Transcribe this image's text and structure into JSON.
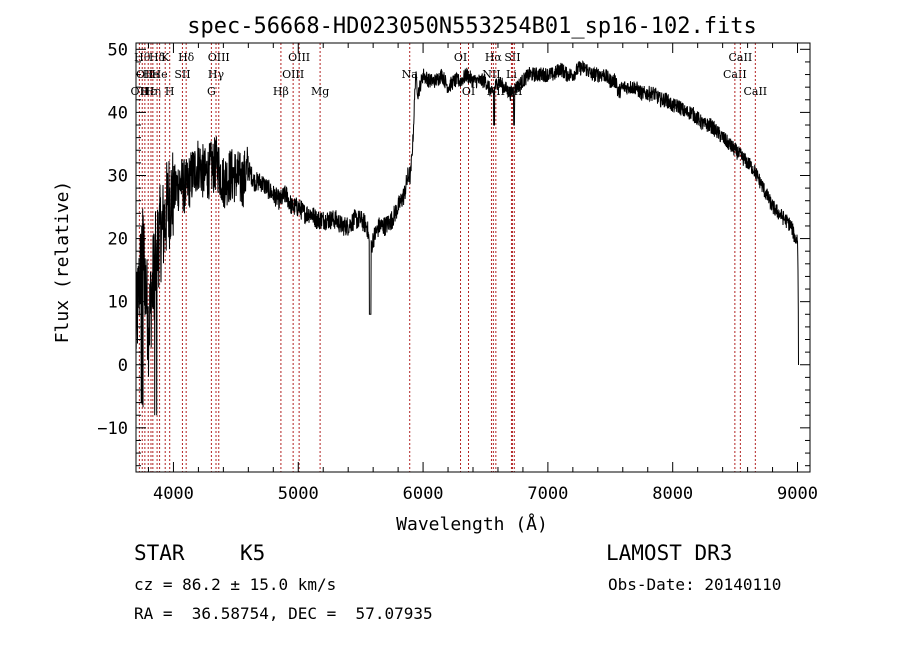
{
  "chart_data": {
    "type": "line",
    "title": "spec-56668-HD023050N553254B01_sp16-102.fits",
    "xlabel": "Wavelength (Å)",
    "ylabel": "Flux (relative)",
    "xlim": [
      3700,
      9100
    ],
    "ylim": [
      -17,
      51
    ],
    "xticks": [
      4000,
      5000,
      6000,
      7000,
      8000,
      9000
    ],
    "yticks": [
      -10,
      0,
      10,
      20,
      30,
      40,
      50
    ],
    "ytick_labels": [
      "−10",
      "0",
      "10",
      "20",
      "30",
      "40",
      "50"
    ],
    "line_color": "#000000",
    "marker_color": "#b22222",
    "spectrum_anchors": [
      [
        3700,
        5
      ],
      [
        3730,
        14
      ],
      [
        3760,
        18
      ],
      [
        3800,
        6
      ],
      [
        3840,
        14
      ],
      [
        3880,
        20
      ],
      [
        3920,
        22
      ],
      [
        3960,
        26
      ],
      [
        4000,
        27
      ],
      [
        4050,
        29
      ],
      [
        4100,
        28
      ],
      [
        4150,
        30
      ],
      [
        4200,
        32
      ],
      [
        4250,
        30
      ],
      [
        4300,
        31
      ],
      [
        4350,
        32
      ],
      [
        4400,
        29
      ],
      [
        4450,
        30
      ],
      [
        4500,
        30
      ],
      [
        4550,
        29
      ],
      [
        4600,
        31
      ],
      [
        4650,
        29
      ],
      [
        4700,
        29
      ],
      [
        4750,
        28
      ],
      [
        4800,
        27
      ],
      [
        4850,
        26
      ],
      [
        4900,
        27
      ],
      [
        4950,
        25
      ],
      [
        5000,
        25
      ],
      [
        5050,
        24
      ],
      [
        5100,
        24
      ],
      [
        5150,
        23
      ],
      [
        5200,
        23
      ],
      [
        5250,
        23
      ],
      [
        5300,
        23
      ],
      [
        5350,
        22
      ],
      [
        5400,
        22
      ],
      [
        5450,
        23
      ],
      [
        5500,
        23
      ],
      [
        5550,
        22
      ],
      [
        5580,
        18
      ],
      [
        5600,
        20
      ],
      [
        5650,
        22
      ],
      [
        5700,
        22
      ],
      [
        5750,
        23
      ],
      [
        5800,
        25
      ],
      [
        5850,
        27
      ],
      [
        5880,
        30
      ],
      [
        5900,
        30
      ],
      [
        5920,
        36
      ],
      [
        5940,
        46
      ],
      [
        5960,
        43
      ],
      [
        6000,
        46
      ],
      [
        6050,
        45
      ],
      [
        6100,
        45
      ],
      [
        6150,
        46
      ],
      [
        6200,
        44
      ],
      [
        6250,
        45
      ],
      [
        6300,
        45
      ],
      [
        6350,
        46
      ],
      [
        6400,
        45
      ],
      [
        6450,
        45
      ],
      [
        6500,
        45
      ],
      [
        6550,
        43
      ],
      [
        6600,
        45
      ],
      [
        6650,
        44
      ],
      [
        6700,
        43
      ],
      [
        6750,
        44
      ],
      [
        6800,
        45
      ],
      [
        6850,
        46
      ],
      [
        6900,
        46
      ],
      [
        6950,
        46
      ],
      [
        7000,
        46
      ],
      [
        7050,
        46
      ],
      [
        7100,
        47
      ],
      [
        7150,
        46
      ],
      [
        7200,
        46
      ],
      [
        7250,
        47
      ],
      [
        7300,
        47
      ],
      [
        7350,
        46
      ],
      [
        7400,
        46
      ],
      [
        7450,
        46
      ],
      [
        7500,
        45
      ],
      [
        7550,
        45
      ],
      [
        7560,
        43
      ],
      [
        7600,
        44
      ],
      [
        7650,
        44
      ],
      [
        7700,
        44
      ],
      [
        7750,
        43
      ],
      [
        7800,
        43
      ],
      [
        7850,
        43
      ],
      [
        7900,
        42
      ],
      [
        7950,
        42
      ],
      [
        8000,
        41
      ],
      [
        8050,
        41
      ],
      [
        8100,
        40
      ],
      [
        8150,
        40
      ],
      [
        8200,
        39
      ],
      [
        8250,
        38
      ],
      [
        8300,
        38
      ],
      [
        8350,
        37
      ],
      [
        8400,
        36
      ],
      [
        8450,
        35
      ],
      [
        8500,
        34
      ],
      [
        8550,
        33
      ],
      [
        8600,
        32
      ],
      [
        8650,
        31
      ],
      [
        8700,
        29
      ],
      [
        8750,
        27
      ],
      [
        8800,
        25
      ],
      [
        8850,
        24
      ],
      [
        8900,
        23
      ],
      [
        8950,
        22
      ],
      [
        8980,
        20
      ],
      [
        9000,
        20
      ],
      [
        9005,
        13
      ],
      [
        9008,
        0
      ]
    ],
    "line_markers": [
      {
        "wl": 3727,
        "label": "OII",
        "row": 2
      },
      {
        "wl": 3750,
        "label": "Hθ",
        "row": 0
      },
      {
        "wl": 3771,
        "label": "OII",
        "row": 1
      },
      {
        "wl": 3798,
        "label": "Hε",
        "row": 2
      },
      {
        "wl": 3820,
        "label": "He",
        "row": 1
      },
      {
        "wl": 3835,
        "label": "Hη",
        "row": 2
      },
      {
        "wl": 3869,
        "label": "Hδ",
        "row": 0
      },
      {
        "wl": 3889,
        "label": "He",
        "row": 1
      },
      {
        "wl": 3934,
        "label": "K",
        "row": 0
      },
      {
        "wl": 3970,
        "label": "H",
        "row": 2
      },
      {
        "wl": 4072,
        "label": "SII",
        "row": 1
      },
      {
        "wl": 4102,
        "label": "Hδ",
        "row": 0
      },
      {
        "wl": 4304,
        "label": "G",
        "row": 2
      },
      {
        "wl": 4341,
        "label": "Hγ",
        "row": 1
      },
      {
        "wl": 4363,
        "label": "OIII",
        "row": 0
      },
      {
        "wl": 4861,
        "label": "Hβ",
        "row": 2
      },
      {
        "wl": 4959,
        "label": "OIII",
        "row": 1
      },
      {
        "wl": 5007,
        "label": "OIII",
        "row": 0
      },
      {
        "wl": 5175,
        "label": "Mg",
        "row": 2
      },
      {
        "wl": 5893,
        "label": "Na",
        "row": 1
      },
      {
        "wl": 6300,
        "label": "OI",
        "row": 0
      },
      {
        "wl": 6364,
        "label": "OI",
        "row": 2
      },
      {
        "wl": 6548,
        "label": "NII",
        "row": 1
      },
      {
        "wl": 6563,
        "label": "Hα",
        "row": 0
      },
      {
        "wl": 6583,
        "label": "NII",
        "row": 2
      },
      {
        "wl": 6708,
        "label": "Li",
        "row": 1
      },
      {
        "wl": 6716,
        "label": "SII",
        "row": 0
      },
      {
        "wl": 6731,
        "label": "SII",
        "row": 2
      },
      {
        "wl": 8498,
        "label": "CaII",
        "row": 1
      },
      {
        "wl": 8542,
        "label": "CaII",
        "row": 0
      },
      {
        "wl": 8662,
        "label": "CaII",
        "row": 2
      }
    ]
  },
  "info": {
    "object_class": "STAR",
    "subclass": "K5",
    "redshift": "cz = 86.2 ± 15.0 km/s",
    "coords": "RA =  36.58754, DEC =  57.07935",
    "survey": "LAMOST DR3",
    "obs_date": "Obs-Date: 20140110"
  }
}
